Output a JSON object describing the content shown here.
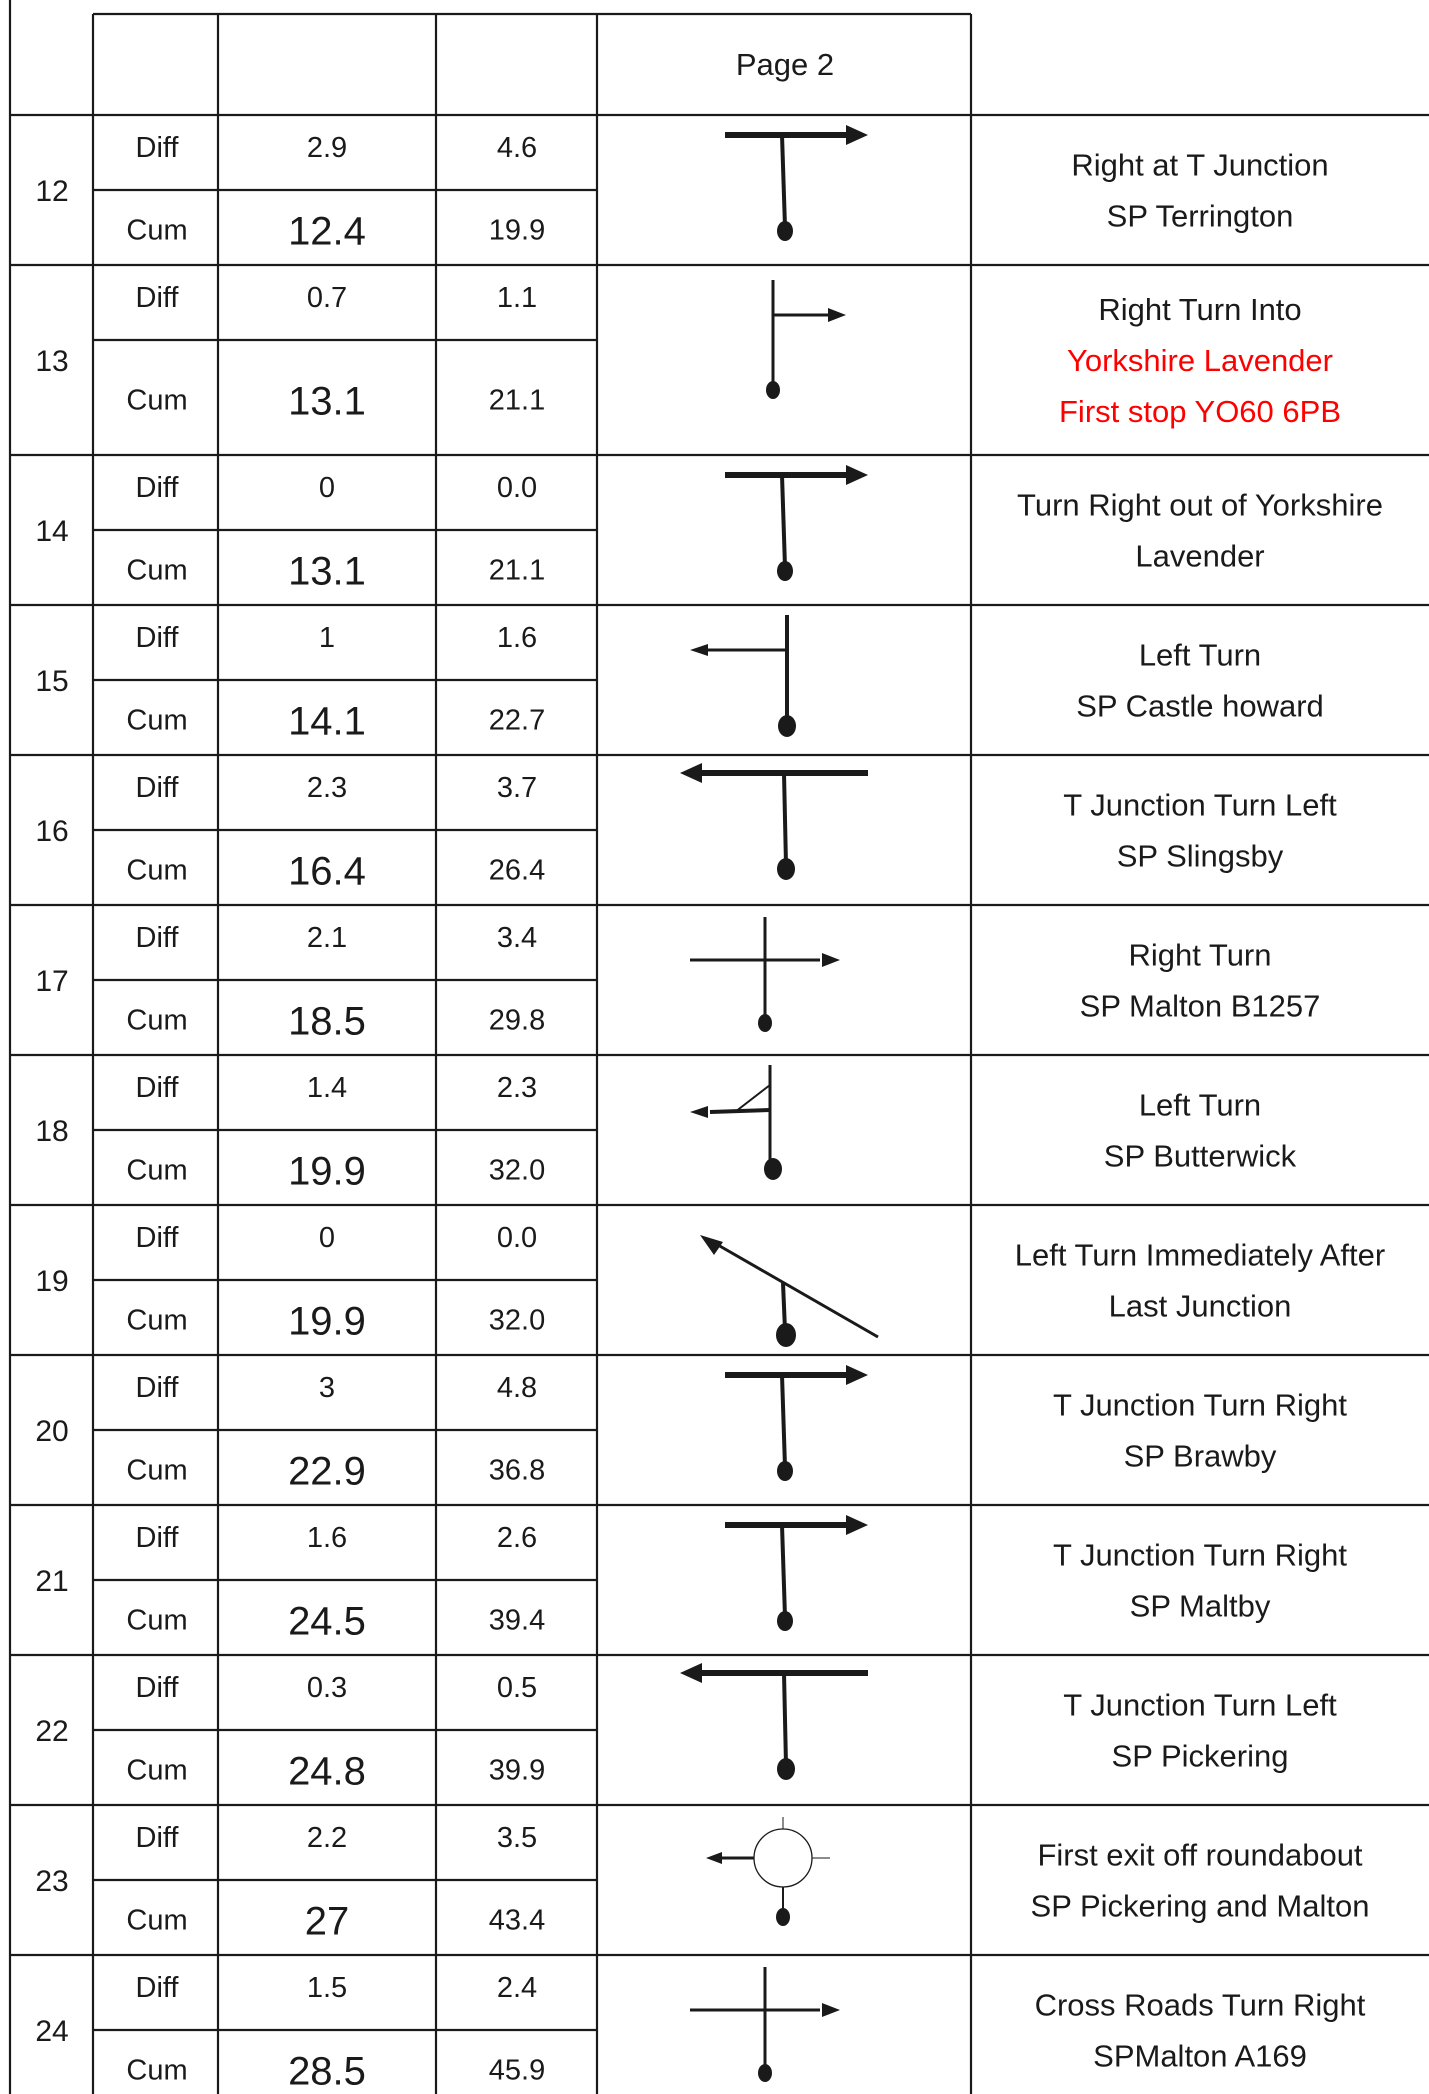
{
  "header": {
    "page_label": "Page 2"
  },
  "labels": {
    "diff": "Diff",
    "cum": "Cum"
  },
  "rows": [
    {
      "no": "12",
      "diff_mi": "2.9",
      "diff_km": "4.6",
      "cum_mi": "12.4",
      "cum_km": "19.9",
      "symbol": "t-junction-right-icon",
      "instructions": [
        {
          "text": "Right at T Junction"
        },
        {
          "text": "SP Terrington"
        }
      ]
    },
    {
      "no": "13",
      "diff_mi": "0.7",
      "diff_km": "1.1",
      "cum_mi": "13.1",
      "cum_km": "21.1",
      "symbol": "right-turn-icon",
      "instructions": [
        {
          "text": "Right Turn Into"
        },
        {
          "text": "Yorkshire Lavender",
          "color": "#ff0000"
        },
        {
          "text": "First stop   YO60 6PB",
          "color": "#ff0000"
        }
      ]
    },
    {
      "no": "14",
      "diff_mi": "0",
      "diff_km": "0.0",
      "cum_mi": "13.1",
      "cum_km": "21.1",
      "symbol": "t-junction-right-icon",
      "instructions": [
        {
          "text": "Turn Right  out of Yorkshire"
        },
        {
          "text": "Lavender"
        }
      ]
    },
    {
      "no": "15",
      "diff_mi": "1",
      "diff_km": "1.6",
      "cum_mi": "14.1",
      "cum_km": "22.7",
      "symbol": "left-turn-icon",
      "instructions": [
        {
          "text": "Left Turn"
        },
        {
          "text": "SP Castle howard"
        }
      ]
    },
    {
      "no": "16",
      "diff_mi": "2.3",
      "diff_km": "3.7",
      "cum_mi": "16.4",
      "cum_km": "26.4",
      "symbol": "t-junction-left-icon",
      "instructions": [
        {
          "text": "T Junction Turn Left"
        },
        {
          "text": "SP Slingsby"
        }
      ]
    },
    {
      "no": "17",
      "diff_mi": "2.1",
      "diff_km": "3.4",
      "cum_mi": "18.5",
      "cum_km": "29.8",
      "symbol": "crossroads-right-icon",
      "instructions": [
        {
          "text": "Right Turn"
        },
        {
          "text": "SP Malton    B1257"
        }
      ]
    },
    {
      "no": "18",
      "diff_mi": "1.4",
      "diff_km": "2.3",
      "cum_mi": "19.9",
      "cum_km": "32.0",
      "symbol": "fork-left-icon",
      "instructions": [
        {
          "text": "Left Turn"
        },
        {
          "text": "SP Butterwick"
        }
      ]
    },
    {
      "no": "19",
      "diff_mi": "0",
      "diff_km": "0.0",
      "cum_mi": "19.9",
      "cum_km": "32.0",
      "symbol": "diagonal-left-icon",
      "instructions": [
        {
          "text": "Left Turn Immediately After"
        },
        {
          "text": "Last Junction"
        }
      ]
    },
    {
      "no": "20",
      "diff_mi": "3",
      "diff_km": "4.8",
      "cum_mi": "22.9",
      "cum_km": "36.8",
      "symbol": "t-junction-right-icon",
      "instructions": [
        {
          "text": "T Junction Turn Right"
        },
        {
          "text": "SP Brawby"
        }
      ]
    },
    {
      "no": "21",
      "diff_mi": "1.6",
      "diff_km": "2.6",
      "cum_mi": "24.5",
      "cum_km": "39.4",
      "symbol": "t-junction-right-icon",
      "instructions": [
        {
          "text": "T Junction Turn Right"
        },
        {
          "text": "SP Maltby"
        }
      ]
    },
    {
      "no": "22",
      "diff_mi": "0.3",
      "diff_km": "0.5",
      "cum_mi": "24.8",
      "cum_km": "39.9",
      "symbol": "t-junction-left-icon",
      "instructions": [
        {
          "text": "T Junction Turn Left"
        },
        {
          "text": "SP Pickering"
        }
      ]
    },
    {
      "no": "23",
      "diff_mi": "2.2",
      "diff_km": "3.5",
      "cum_mi": "27",
      "cum_km": "43.4",
      "symbol": "roundabout-first-exit-icon",
      "instructions": [
        {
          "text": "First exit off roundabout"
        },
        {
          "text": "SP Pickering and Malton"
        }
      ]
    },
    {
      "no": "24",
      "diff_mi": "1.5",
      "diff_km": "2.4",
      "cum_mi": "28.5",
      "cum_km": "45.9",
      "symbol": "crossroads-right-icon",
      "instructions": [
        {
          "text": "Cross Roads Turn Right"
        },
        {
          "text": "SPMalton A169"
        }
      ]
    }
  ]
}
